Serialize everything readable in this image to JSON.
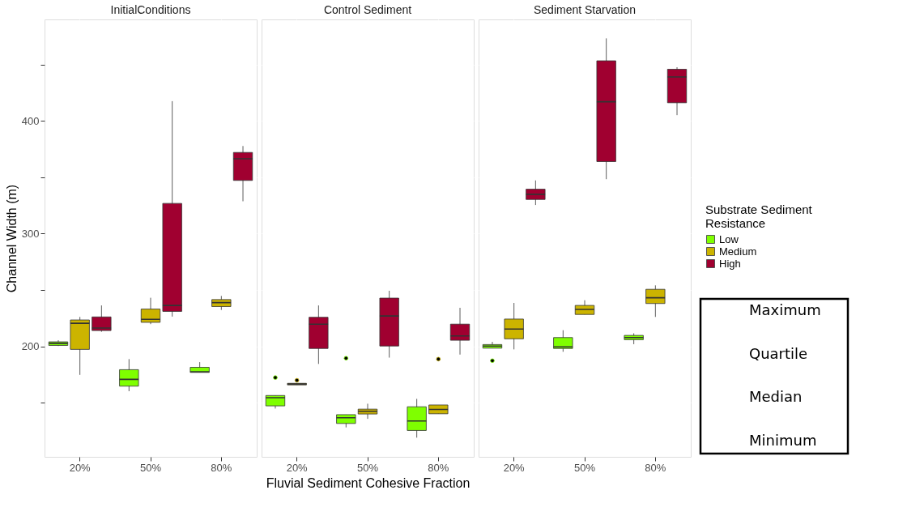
{
  "chart_data": [
    {
      "type": "box",
      "title": "InitialConditions",
      "ylabel": "Channel Width (m)",
      "categories": [
        "20%",
        "50%",
        "80%"
      ],
      "ylim": [
        102,
        490
      ],
      "yticks": [
        {
          "value": 150,
          "label": null
        },
        200,
        {
          "value": 250,
          "label": null
        },
        300,
        {
          "value": 350,
          "label": null
        },
        400,
        {
          "value": 450,
          "label": null
        }
      ],
      "grid": true,
      "series": [
        {
          "color": "#7fff00",
          "boxes": [
            {
              "low": 200.3,
              "q1": 200.8,
              "median": 202.7,
              "q3": 204.0,
              "high": 205.4
            },
            {
              "low": 160.2,
              "q1": 164.7,
              "median": 170.7,
              "q3": 179.3,
              "high": 188.7
            },
            {
              "low": 176.9,
              "q1": 176.9,
              "median": 177.4,
              "q3": 181.4,
              "high": 186.0
            }
          ]
        },
        {
          "color": "#ccb400",
          "boxes": [
            {
              "low": 174.7,
              "q1": 197.3,
              "median": 220.5,
              "q3": 223.4,
              "high": 226.1
            },
            {
              "low": 219.7,
              "q1": 221.3,
              "median": 224.0,
              "q3": 233.1,
              "high": 243.1
            },
            {
              "low": 232.3,
              "q1": 235.3,
              "median": 238.8,
              "q3": 241.5,
              "high": 244.7
            }
          ]
        },
        {
          "color": "#a00030",
          "boxes": [
            {
              "low": 212.9,
              "q1": 214.0,
              "median": 216.2,
              "q3": 226.1,
              "high": 236.3
            },
            {
              "low": 226.4,
              "q1": 231.0,
              "median": 236.3,
              "q3": 326.8,
              "high": 417.5
            },
            {
              "low": 328.7,
              "q1": 347.2,
              "median": 366.4,
              "q3": 372.0,
              "high": 377.7
            }
          ]
        }
      ]
    },
    {
      "type": "box",
      "title": "Control Sediment",
      "xlabel": "Fluvial Sediment Cohesive Fraction",
      "categories": [
        "20%",
        "50%",
        "80%"
      ],
      "ylim": [
        102,
        490
      ],
      "yticks": [
        {
          "value": 150,
          "label": null
        },
        200,
        {
          "value": 250,
          "label": null
        },
        300,
        {
          "value": 350,
          "label": null
        },
        400,
        {
          "value": 450,
          "label": null
        }
      ],
      "grid": true,
      "tick_labels": "x",
      "series": [
        {
          "color": "#7fff00",
          "boxes": [
            {
              "low": 144.8,
              "q1": 147.2,
              "median": 154.5,
              "q3": 156.4,
              "high": 156.4,
              "outliers": [
                172.3
              ]
            },
            {
              "low": 128.1,
              "q1": 131.6,
              "median": 136.7,
              "q3": 139.4,
              "high": 139.4,
              "outliers": [
                189.5
              ]
            },
            {
              "low": 119.0,
              "q1": 125.4,
              "median": 133.8,
              "q3": 146.4,
              "high": 153.4
            }
          ]
        },
        {
          "color": "#ccb400",
          "boxes": [
            {
              "low": 165.8,
              "q1": 165.8,
              "median": 166.6,
              "q3": 167.2,
              "high": 167.2,
              "outliers": [
                169.9
              ]
            },
            {
              "low": 135.7,
              "q1": 140.0,
              "median": 142.4,
              "q3": 144.3,
              "high": 149.1
            },
            {
              "low": 140.2,
              "q1": 140.2,
              "median": 144.0,
              "q3": 148.0,
              "high": 148.0,
              "outliers": [
                188.7
              ]
            }
          ]
        },
        {
          "color": "#a00030",
          "boxes": [
            {
              "low": 184.4,
              "q1": 198.1,
              "median": 219.7,
              "q3": 225.8,
              "high": 236.3
            },
            {
              "low": 190.0,
              "q1": 200.3,
              "median": 226.9,
              "q3": 242.8,
              "high": 249.3
            },
            {
              "low": 192.7,
              "q1": 205.4,
              "median": 209.2,
              "q3": 219.7,
              "high": 234.2
            }
          ]
        }
      ]
    },
    {
      "type": "box",
      "title": "Sediment Starvation",
      "legend_title": "Substrate Sediment Resistance",
      "legend": "right",
      "categories": [
        "20%",
        "50%",
        "80%"
      ],
      "ylim": [
        102,
        490
      ],
      "yticks": [
        {
          "value": 150,
          "label": null
        },
        200,
        {
          "value": 250,
          "label": null
        },
        300,
        {
          "value": 350,
          "label": null
        },
        400,
        {
          "value": 450,
          "label": null
        }
      ],
      "grid": true,
      "tick_labels": "x",
      "annotations": [
        "Maximum",
        "Quartile",
        "Median",
        "Minimum"
      ],
      "series": [
        {
          "name": "Low",
          "color": "#7fff00",
          "boxes": [
            {
              "low": 198.4,
              "q1": 198.4,
              "median": 200.3,
              "q3": 201.6,
              "high": 204.0,
              "outliers": [
                187.3
              ]
            },
            {
              "low": 195.2,
              "q1": 198.1,
              "median": 199.5,
              "q3": 207.8,
              "high": 214.3
            },
            {
              "low": 201.9,
              "q1": 205.9,
              "median": 207.8,
              "q3": 209.7,
              "high": 211.6
            }
          ]
        },
        {
          "name": "Medium",
          "color": "#ccb400",
          "boxes": [
            {
              "low": 197.3,
              "q1": 206.7,
              "median": 215.3,
              "q3": 224.2,
              "high": 238.5
            },
            {
              "low": 228.3,
              "q1": 228.3,
              "median": 232.8,
              "q3": 236.3,
              "high": 240.9
            },
            {
              "low": 226.1,
              "q1": 238.0,
              "median": 243.1,
              "q3": 250.6,
              "high": 254.1
            }
          ]
        },
        {
          "name": "High",
          "color": "#a00030",
          "boxes": [
            {
              "low": 325.4,
              "q1": 330.3,
              "median": 334.9,
              "q3": 339.4,
              "high": 347.2
            },
            {
              "low": 348.3,
              "q1": 363.9,
              "median": 417.0,
              "q3": 453.3,
              "high": 473.2
            },
            {
              "low": 405.1,
              "q1": 416.1,
              "median": 439.0,
              "q3": 445.8,
              "high": 447.6
            }
          ]
        }
      ]
    }
  ]
}
